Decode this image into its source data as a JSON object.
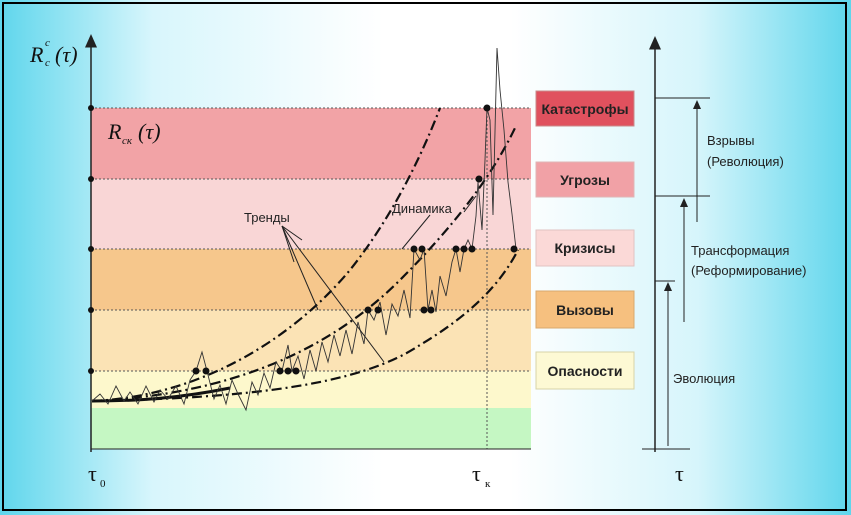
{
  "diagram": {
    "y_axis_label": {
      "main": "R",
      "sup": "c",
      "sub": "c",
      "arg": "(τ)"
    },
    "curve_label": {
      "main": "R",
      "sub": "ск",
      "arg": "(τ)"
    },
    "x_axis": {
      "start": "τ",
      "start_sub": "0",
      "end": "τ",
      "end_sub": "к"
    },
    "right_axis_label": "τ",
    "annotations": {
      "trends": "Тренды",
      "dynamics": "Динамика"
    },
    "zones": [
      {
        "label": "Катастрофы",
        "band_color": "#f2a3a6",
        "box_color": "#e0515e"
      },
      {
        "label": "Угрозы",
        "band_color": "#f9d6d6",
        "box_color": "#f1a1a6"
      },
      {
        "label": "Кризисы",
        "band_color": "#f6c78c",
        "box_color": "#fbd9d7"
      },
      {
        "label": "Вызовы",
        "band_color": "#fbe3b5",
        "box_color": "#f6c07f"
      },
      {
        "label": "Опасности",
        "band_color": "#fdf8cc",
        "box_color": "#fdf9d4"
      },
      {
        "label": "",
        "band_color": "#c5f7c3",
        "box_color": ""
      }
    ],
    "stages": [
      {
        "line1": "Взрывы",
        "line2": "(Революция)"
      },
      {
        "line1": "Трансформация",
        "line2": "(Реформирование)"
      },
      {
        "line1": "Эволюция",
        "line2": ""
      }
    ]
  }
}
